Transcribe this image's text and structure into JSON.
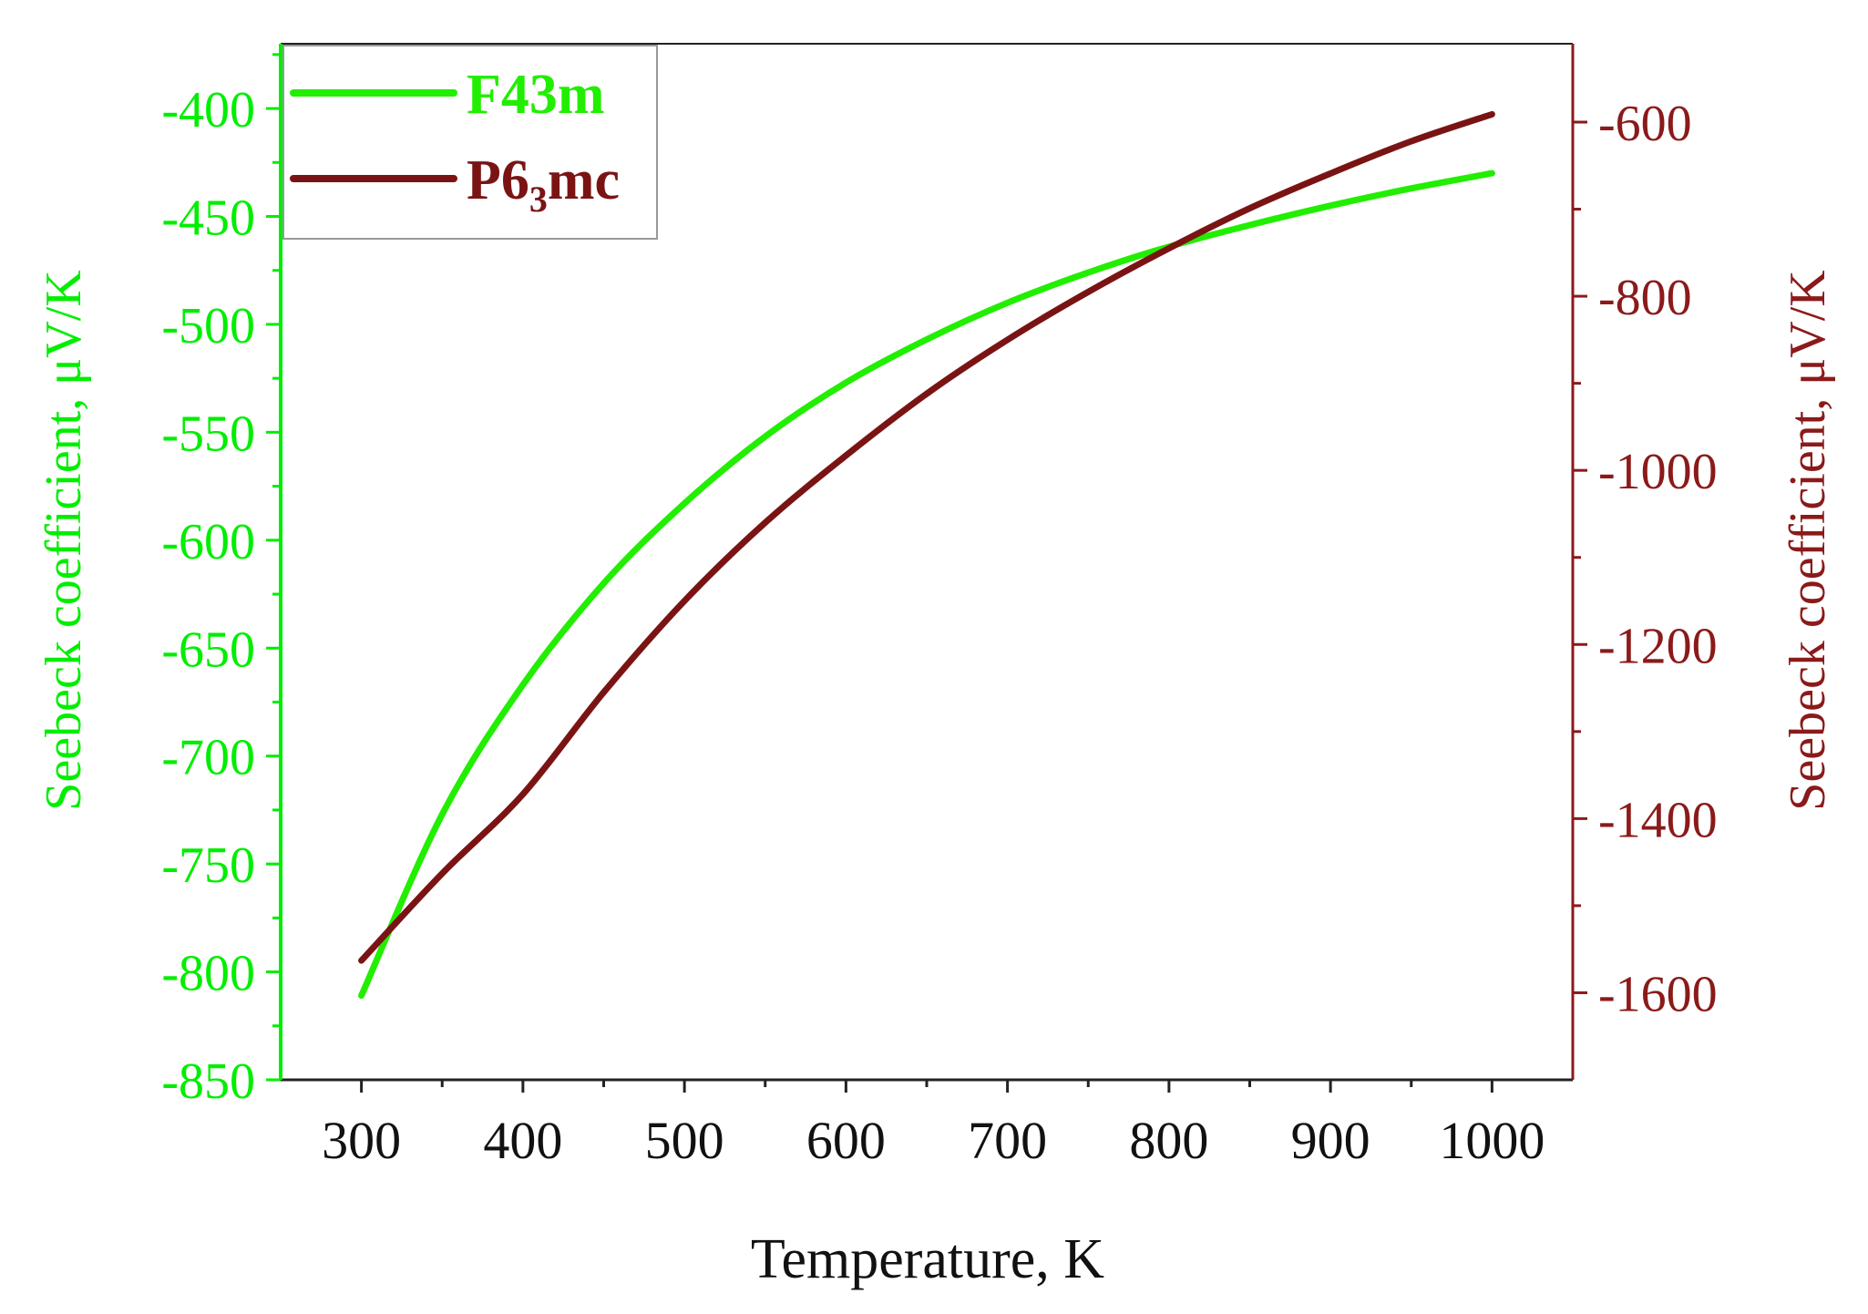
{
  "chart_data": {
    "type": "line",
    "xlabel": "Temperature, K",
    "xlim": [
      250,
      1050
    ],
    "xticks": [
      300,
      400,
      500,
      600,
      700,
      800,
      900,
      1000
    ],
    "y_left": {
      "label": "Seebeck coefficient, μV/K",
      "color": "#00ee00",
      "lim": [
        -850,
        -370
      ],
      "ticks": [
        -850,
        -800,
        -750,
        -700,
        -650,
        -600,
        -550,
        -500,
        -450,
        -400
      ]
    },
    "y_right": {
      "label": "Seebeck coefficient, μV/K",
      "color": "#8b1a1a",
      "lim": [
        -1700,
        -510
      ],
      "ticks": [
        -1600,
        -1400,
        -1200,
        -1000,
        -800,
        -600
      ]
    },
    "series": [
      {
        "name": "F43m",
        "name_sub": "",
        "name_suffix": "",
        "axis": "left",
        "color": "#22ee00",
        "x": [
          300,
          350,
          400,
          450,
          500,
          550,
          600,
          650,
          700,
          750,
          800,
          850,
          900,
          950,
          1000
        ],
        "y": [
          -811,
          -727,
          -667,
          -620,
          -583,
          -552,
          -527,
          -507,
          -490,
          -476,
          -464,
          -454,
          -445,
          -437,
          -430
        ]
      },
      {
        "name": "P6",
        "name_sub": "3",
        "name_suffix": "mc",
        "axis": "right",
        "color": "#7a1414",
        "x": [
          300,
          350,
          400,
          450,
          500,
          550,
          600,
          650,
          700,
          750,
          800,
          850,
          900,
          950,
          1000
        ],
        "y": [
          -1563,
          -1463,
          -1372,
          -1255,
          -1150,
          -1060,
          -983,
          -912,
          -850,
          -795,
          -745,
          -699,
          -659,
          -622,
          -591
        ]
      }
    ],
    "legend_position": "top-left",
    "grid": false
  }
}
